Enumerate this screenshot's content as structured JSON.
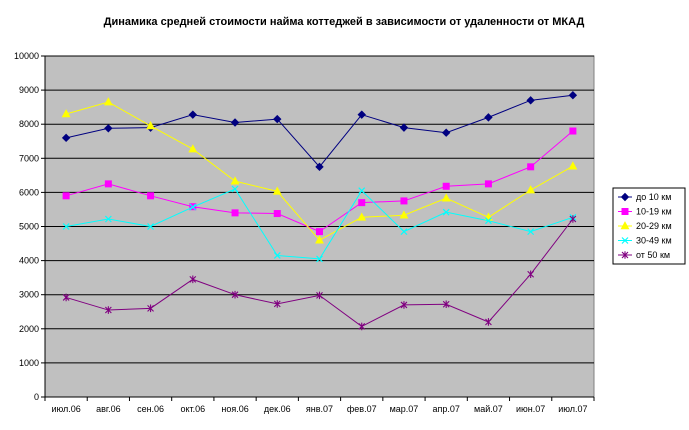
{
  "chart_data": {
    "type": "line",
    "title": "Динамика средней стоимости найма коттеджей в зависимости от удаленности от МКАД",
    "xlabel": "",
    "ylabel": "",
    "ylim": [
      0,
      10000
    ],
    "yticks": [
      0,
      1000,
      2000,
      3000,
      4000,
      5000,
      6000,
      7000,
      8000,
      9000,
      10000
    ],
    "grid": true,
    "legend_position": "right",
    "categories": [
      "июл.06",
      "авг.06",
      "сен.06",
      "окт.06",
      "ноя.06",
      "дек.06",
      "янв.07",
      "фев.07",
      "мар.07",
      "апр.07",
      "май.07",
      "июн.07",
      "июл.07"
    ],
    "series": [
      {
        "name": "до 10 км",
        "color": "#000080",
        "marker": "diamond",
        "values": [
          7600,
          7880,
          7900,
          8280,
          8050,
          8150,
          6750,
          8280,
          7900,
          7750,
          8200,
          8700,
          8850
        ]
      },
      {
        "name": "10-19 км",
        "color": "#ff00ff",
        "marker": "square",
        "values": [
          5900,
          6250,
          5900,
          5580,
          5400,
          5380,
          4850,
          5700,
          5750,
          6180,
          6250,
          6750,
          7800
        ]
      },
      {
        "name": "20-29 км",
        "color": "#ffff00",
        "marker": "triangle",
        "values": [
          8300,
          8650,
          7950,
          7270,
          6330,
          6030,
          4600,
          5270,
          5330,
          5830,
          5270,
          6070,
          6770
        ]
      },
      {
        "name": "30-49 км",
        "color": "#00ffff",
        "marker": "x",
        "values": [
          5000,
          5220,
          5000,
          5570,
          6100,
          4150,
          4050,
          6050,
          4850,
          5420,
          5170,
          4850,
          5270
        ]
      },
      {
        "name": "от 50 км",
        "color": "#800080",
        "marker": "star",
        "values": [
          2920,
          2550,
          2600,
          3450,
          3000,
          2730,
          2980,
          2070,
          2700,
          2720,
          2200,
          3600,
          5220
        ]
      }
    ]
  }
}
